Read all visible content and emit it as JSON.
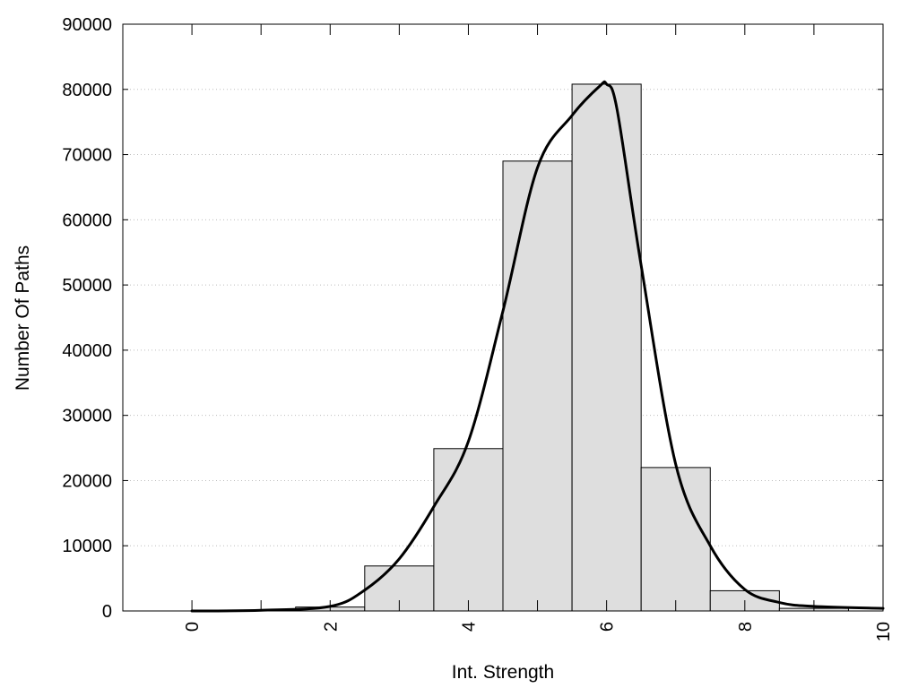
{
  "chart_data": {
    "type": "bar",
    "title": "",
    "xlabel": "Int. Strength",
    "ylabel": "Number Of Paths",
    "xlim": [
      -1,
      10
    ],
    "ylim": [
      0,
      90000
    ],
    "xticks": [
      0,
      2,
      4,
      6,
      8,
      10
    ],
    "yticks": [
      0,
      10000,
      20000,
      30000,
      40000,
      50000,
      60000,
      70000,
      80000,
      90000
    ],
    "grid": "horizontal",
    "bins": [
      {
        "x": 0,
        "value": 0
      },
      {
        "x": 1,
        "value": 0
      },
      {
        "x": 2,
        "value": 600
      },
      {
        "x": 3,
        "value": 6900
      },
      {
        "x": 4,
        "value": 24900
      },
      {
        "x": 5,
        "value": 69000
      },
      {
        "x": 6,
        "value": 80800
      },
      {
        "x": 7,
        "value": 22000
      },
      {
        "x": 8,
        "value": 3100
      },
      {
        "x": 9,
        "value": 400
      },
      {
        "x": 10,
        "value": 0
      }
    ],
    "curve": {
      "x": [
        0,
        1,
        2,
        2.5,
        3,
        3.5,
        4,
        4.5,
        5,
        5.5,
        5.9,
        6,
        6.15,
        6.5,
        7,
        7.5,
        8,
        8.5,
        9,
        10
      ],
      "y": [
        0,
        100,
        700,
        3200,
        8000,
        16000,
        26000,
        46000,
        68000,
        76000,
        80500,
        80800,
        77000,
        53000,
        22500,
        10000,
        3300,
        1300,
        700,
        400
      ]
    }
  }
}
